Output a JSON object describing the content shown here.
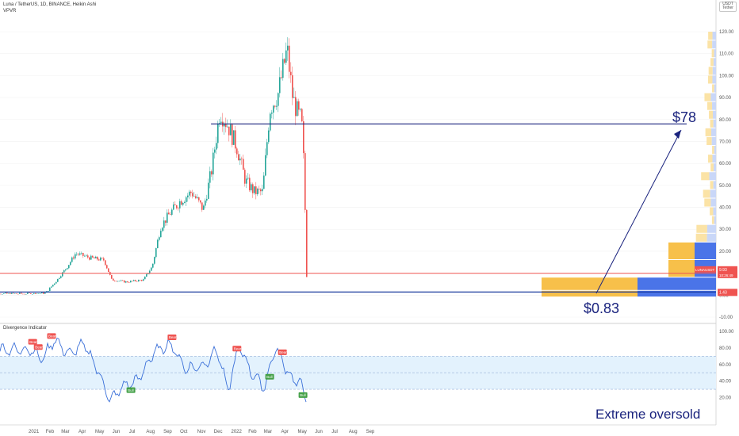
{
  "header": {
    "symbol_line": "Luna / TetherUS, 1D, BINANCE, Heikin Ashi",
    "indicator_main": "VPVR",
    "indicator_sub": "Divergence Indicator"
  },
  "currency_box": {
    "code": "USDT",
    "sub": "Tether"
  },
  "colors": {
    "up": "#26a69a",
    "down": "#ef5350",
    "annotation": "#1a237e",
    "rsi_line": "#3a6fd8",
    "rsi_band": "#e3f2fd",
    "price_line": "#ef5350",
    "support_line": "#1a3a9e",
    "vp_gold": "#f7c04a",
    "vp_blue": "#4a74e8",
    "vp_gold_light": "#fbe3a6",
    "vp_blue_light": "#c9d7f8",
    "bear_label": "#ef5350",
    "bull_label": "#43a047"
  },
  "price_axis_labels": [
    "120.00",
    "110.00",
    "100.00",
    "90.00",
    "80.00",
    "70.00",
    "60.00",
    "50.00",
    "40.00",
    "30.00",
    "20.00",
    "10.00",
    "0.00",
    "-10.00"
  ],
  "rsi_axis_labels": [
    "100.00",
    "80.00",
    "60.00",
    "40.00",
    "20.00"
  ],
  "time_labels": [
    "2021",
    "Feb",
    "Mar",
    "Apr",
    "May",
    "Jun",
    "Jul",
    "Aug",
    "Sep",
    "Oct",
    "Nov",
    "Dec",
    "2022",
    "Feb",
    "Mar",
    "Apr",
    "May",
    "Jun",
    "Jul",
    "Aug",
    "Sep"
  ],
  "price_tags": {
    "symbol": "LUNAUSDT",
    "price": "9.93",
    "countdown": "10:26:49",
    "support": "1.43"
  },
  "annotations": {
    "target": "$78",
    "low": "$0.83",
    "oversold": "Extreme oversold"
  },
  "divergence_labels": {
    "bear": "Bear",
    "bull": "Bull"
  },
  "chart_data": [
    {
      "type": "line",
      "subtype": "heikin-ashi candlestick",
      "title": "Luna / TetherUS, 1D, BINANCE, Heikin Ashi",
      "x_unit": "date",
      "y_range": [
        -10,
        120
      ],
      "y_ticks": [
        120,
        110,
        100,
        90,
        80,
        70,
        60,
        50,
        40,
        30,
        20,
        10,
        0,
        -10
      ],
      "x_ticks": [
        "2021",
        "Feb",
        "Mar",
        "Apr",
        "May",
        "Jun",
        "Jul",
        "Aug",
        "Sep",
        "Oct",
        "Nov",
        "Dec",
        "2022",
        "Feb",
        "Mar",
        "Apr",
        "May",
        "Jun",
        "Jul",
        "Aug",
        "Sep"
      ],
      "x": [
        "2021-01-01",
        "2021-01-25",
        "2021-02-15",
        "2021-03-05",
        "2021-03-20",
        "2021-04-15",
        "2021-05-10",
        "2021-05-24",
        "2021-06-20",
        "2021-07-20",
        "2021-08-05",
        "2021-08-20",
        "2021-09-05",
        "2021-09-25",
        "2021-10-15",
        "2021-11-05",
        "2021-11-20",
        "2021-12-05",
        "2021-12-20",
        "2022-01-05",
        "2022-01-20",
        "2022-02-05",
        "2022-02-20",
        "2022-03-05",
        "2022-03-20",
        "2022-04-05",
        "2022-04-15",
        "2022-04-25",
        "2022-05-01",
        "2022-05-06",
        "2022-05-10",
        "2022-05-12"
      ],
      "values": [
        0.6,
        1,
        7,
        13,
        19,
        17,
        16,
        7,
        6,
        7,
        13,
        31,
        37,
        43,
        47,
        39,
        57,
        84,
        77,
        67,
        52,
        47,
        47,
        85,
        92,
        112,
        90,
        82,
        80,
        55,
        10,
        0.83
      ],
      "horizontal_lines": [
        {
          "name": "LUNAUSDT",
          "value": 9.93
        },
        {
          "name": "support",
          "value": 1.43
        },
        {
          "name": "target",
          "value": 78
        }
      ],
      "volume_profile": "VPVR"
    },
    {
      "type": "line",
      "title": "Divergence Indicator",
      "x_unit": "date",
      "y_range": [
        10,
        100
      ],
      "y_ticks": [
        100,
        80,
        60,
        40,
        20
      ],
      "band": [
        30,
        70
      ],
      "x": [
        "2021-01-01",
        "2021-01-20",
        "2021-02-10",
        "2021-03-10",
        "2021-04-05",
        "2021-05-01",
        "2021-05-22",
        "2021-06-15",
        "2021-07-10",
        "2021-08-10",
        "2021-09-08",
        "2021-10-05",
        "2021-11-05",
        "2021-12-01",
        "2021-12-20",
        "2022-01-10",
        "2022-02-01",
        "2022-02-25",
        "2022-03-15",
        "2022-04-01",
        "2022-04-15",
        "2022-05-01",
        "2022-05-12"
      ],
      "values": [
        78,
        66,
        90,
        72,
        85,
        52,
        16,
        34,
        40,
        75,
        85,
        55,
        58,
        78,
        28,
        82,
        50,
        32,
        80,
        60,
        42,
        38,
        13
      ],
      "divergences": [
        {
          "label": "Bear",
          "x": "2021-01-02"
        },
        {
          "label": "Bear",
          "x": "2021-01-12"
        },
        {
          "label": "Bear",
          "x": "2021-02-05"
        },
        {
          "label": "Bull",
          "x": "2021-06-28"
        },
        {
          "label": "Bear",
          "x": "2021-09-10"
        },
        {
          "label": "Bear",
          "x": "2022-01-05"
        },
        {
          "label": "Bull",
          "x": "2022-03-05"
        },
        {
          "label": "Bear",
          "x": "2022-03-28"
        },
        {
          "label": "Bull",
          "x": "2022-05-04"
        }
      ]
    }
  ]
}
